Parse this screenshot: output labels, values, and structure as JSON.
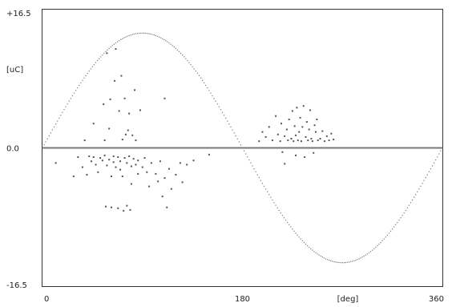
{
  "chart_data": {
    "type": "scatter",
    "xlim": [
      0,
      360
    ],
    "ylim": [
      -16.5,
      16.5
    ],
    "grid": false,
    "y_ticks": [
      {
        "label": "+16.5",
        "value": 16.5
      },
      {
        "label": "0.0",
        "value": 0
      },
      {
        "label": "-16.5",
        "value": -16.5
      }
    ],
    "x_ticks": [
      {
        "label": "0",
        "value": 0
      },
      {
        "label": "180",
        "value": 180
      },
      {
        "label": "360",
        "value": 360
      }
    ],
    "ylabel": "[uC]",
    "xlabel": "[deg]",
    "reference_curve": {
      "shape": "sine",
      "amplitude": 13.7,
      "color": "#777777"
    },
    "zero_line_color": "#777777",
    "marker_color": "#555555",
    "series": [
      {
        "values": [
          [
            12,
            -1.8
          ],
          [
            28,
            -3.4
          ],
          [
            32,
            -1.1
          ],
          [
            36,
            -2.3
          ],
          [
            38,
            0.9
          ],
          [
            40,
            -3.2
          ],
          [
            42,
            -1.0
          ],
          [
            44,
            -1.6
          ],
          [
            46,
            2.9
          ],
          [
            46,
            -1.1
          ],
          [
            48,
            -2.0
          ],
          [
            50,
            -2.9
          ],
          [
            52,
            -1.2
          ],
          [
            54,
            -1.5
          ],
          [
            55,
            5.2
          ],
          [
            56,
            0.9
          ],
          [
            56,
            -0.9
          ],
          [
            57,
            -7.0
          ],
          [
            58,
            -2.1
          ],
          [
            58,
            11.3
          ],
          [
            60,
            -1.4
          ],
          [
            60,
            2.3
          ],
          [
            61,
            5.8
          ],
          [
            62,
            -3.4
          ],
          [
            62,
            -7.1
          ],
          [
            64,
            -1.0
          ],
          [
            64,
            -1.7
          ],
          [
            65,
            8.0
          ],
          [
            66,
            -2.3
          ],
          [
            66,
            11.8
          ],
          [
            68,
            -1.1
          ],
          [
            68,
            -7.2
          ],
          [
            69,
            4.4
          ],
          [
            70,
            -1.6
          ],
          [
            70,
            -2.6
          ],
          [
            71,
            8.6
          ],
          [
            72,
            -3.4
          ],
          [
            72,
            1.0
          ],
          [
            73,
            -7.5
          ],
          [
            74,
            -1.2
          ],
          [
            74,
            5.9
          ],
          [
            75,
            1.6
          ],
          [
            76,
            -1.8
          ],
          [
            76,
            -6.9
          ],
          [
            77,
            2.1
          ],
          [
            78,
            -1.0
          ],
          [
            78,
            4.1
          ],
          [
            79,
            -7.4
          ],
          [
            80,
            -2.2
          ],
          [
            80,
            -4.3
          ],
          [
            81,
            1.5
          ],
          [
            82,
            -1.3
          ],
          [
            83,
            6.9
          ],
          [
            84,
            -2.0
          ],
          [
            84,
            0.9
          ],
          [
            86,
            -1.5
          ],
          [
            86,
            -3.1
          ],
          [
            88,
            4.5
          ],
          [
            90,
            -2.3
          ],
          [
            92,
            -1.2
          ],
          [
            94,
            -2.9
          ],
          [
            96,
            -4.6
          ],
          [
            98,
            -1.8
          ],
          [
            102,
            -3.1
          ],
          [
            104,
            -4.0
          ],
          [
            106,
            -1.6
          ],
          [
            108,
            -5.8
          ],
          [
            110,
            -3.6
          ],
          [
            110,
            5.9
          ],
          [
            112,
            -7.1
          ],
          [
            114,
            -2.5
          ],
          [
            116,
            -4.9
          ],
          [
            120,
            -3.2
          ],
          [
            124,
            -1.8
          ],
          [
            126,
            -4.1
          ],
          [
            130,
            -2.0
          ],
          [
            136,
            -1.5
          ],
          [
            150,
            -0.8
          ],
          [
            195,
            0.8
          ],
          [
            198,
            1.9
          ],
          [
            201,
            1.3
          ],
          [
            204,
            2.5
          ],
          [
            207,
            0.9
          ],
          [
            210,
            3.8
          ],
          [
            212,
            1.6
          ],
          [
            214,
            0.8
          ],
          [
            215,
            2.9
          ],
          [
            216,
            -0.5
          ],
          [
            218,
            1.4
          ],
          [
            220,
            2.2
          ],
          [
            221,
            0.9
          ],
          [
            222,
            3.4
          ],
          [
            224,
            1.1
          ],
          [
            225,
            4.4
          ],
          [
            226,
            0.8
          ],
          [
            227,
            2.6
          ],
          [
            228,
            1.5
          ],
          [
            229,
            4.8
          ],
          [
            230,
            0.9
          ],
          [
            231,
            1.9
          ],
          [
            232,
            3.6
          ],
          [
            233,
            0.8
          ],
          [
            234,
            2.5
          ],
          [
            235,
            5.0
          ],
          [
            236,
            -1.1
          ],
          [
            237,
            1.3
          ],
          [
            238,
            3.1
          ],
          [
            239,
            0.9
          ],
          [
            240,
            2.2
          ],
          [
            241,
            4.5
          ],
          [
            242,
            1.1
          ],
          [
            243,
            0.8
          ],
          [
            245,
            2.7
          ],
          [
            246,
            1.9
          ],
          [
            247,
            3.4
          ],
          [
            248,
            0.9
          ],
          [
            250,
            1.1
          ],
          [
            252,
            2.0
          ],
          [
            254,
            0.8
          ],
          [
            256,
            1.4
          ],
          [
            258,
            0.9
          ],
          [
            260,
            1.7
          ],
          [
            262,
            1.0
          ],
          [
            218,
            -1.9
          ],
          [
            228,
            -0.9
          ],
          [
            244,
            -0.6
          ]
        ]
      }
    ]
  }
}
